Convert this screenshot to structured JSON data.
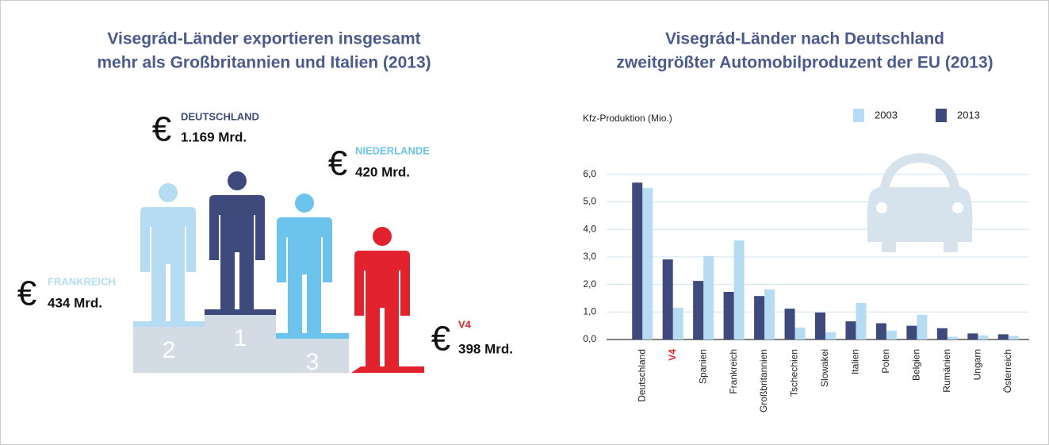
{
  "chart_data": [
    {
      "type": "podium",
      "title": [
        "Visegrád-Länder exportieren insgesamt",
        "mehr als Großbritannien und Italien (2013)"
      ],
      "currency_symbol": "€",
      "categories": [
        "FRANKREICH",
        "DEUTSCHLAND",
        "NIEDERLANDE",
        "V4"
      ],
      "values": [
        434,
        1169,
        420,
        398
      ],
      "value_labels": [
        "434 Mrd.",
        "1.169 Mrd.",
        "420 Mrd.",
        "398 Mrd."
      ],
      "ranks": [
        2,
        1,
        3,
        null
      ],
      "colors": [
        "#b5dcf2",
        "#3e4a7c",
        "#6cc4ec",
        "#e2232e"
      ]
    },
    {
      "type": "bar",
      "title": [
        "Visegrád-Länder nach Deutschland",
        "zweitgrößter Automobilproduzent der EU (2013)"
      ],
      "y_label": "Kfz-Produktion (Mio.)",
      "categories": [
        "Deutschland",
        "V4",
        "Spanien",
        "Frankreich",
        "Großbritannien",
        "Tschechien",
        "Slowakei",
        "Italien",
        "Polen",
        "Belgien",
        "Rumänien",
        "Ungarn",
        "Österreich"
      ],
      "series": [
        {
          "name": "2003",
          "color": "#b5dcf2",
          "values": [
            5.5,
            1.15,
            3.03,
            3.6,
            1.82,
            0.43,
            0.26,
            1.33,
            0.32,
            0.9,
            0.1,
            0.15,
            0.13
          ]
        },
        {
          "name": "2013",
          "color": "#3e4a7c",
          "values": [
            5.7,
            2.91,
            2.13,
            1.73,
            1.58,
            1.12,
            0.98,
            0.66,
            0.59,
            0.5,
            0.41,
            0.22,
            0.19
          ]
        }
      ],
      "highlight_categories": [
        "V4"
      ],
      "highlight_color": "#e2232e",
      "ylim": [
        0,
        6.6
      ],
      "yticks": [
        {
          "value": 0,
          "label": "0,0"
        },
        {
          "value": 1,
          "label": "1,0"
        },
        {
          "value": 2,
          "label": "2,0"
        },
        {
          "value": 3,
          "label": "3,0"
        },
        {
          "value": 4,
          "label": "4,0"
        },
        {
          "value": 5,
          "label": "5,0"
        },
        {
          "value": 6,
          "label": "6,0"
        }
      ],
      "grid": true
    }
  ]
}
